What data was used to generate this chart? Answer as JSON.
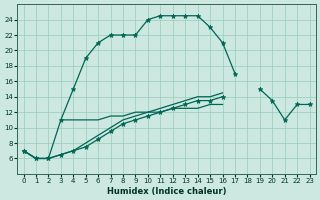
{
  "xlabel": "Humidex (Indice chaleur)",
  "bg_color": "#cce8e0",
  "grid_color": "#99ccbb",
  "line_color": "#006655",
  "x_values": [
    0,
    1,
    2,
    3,
    4,
    5,
    6,
    7,
    8,
    9,
    10,
    11,
    12,
    13,
    14,
    15,
    16,
    17,
    18,
    19,
    20,
    21,
    22,
    23
  ],
  "series1": [
    7,
    6,
    6,
    11,
    15,
    19,
    21,
    22,
    22,
    22,
    24,
    24.5,
    24.5,
    24.5,
    24.5,
    23,
    21,
    17,
    null,
    null,
    null,
    null,
    null,
    null
  ],
  "series2": [
    null,
    null,
    null,
    11,
    11,
    11,
    11,
    11.5,
    11.5,
    12,
    12,
    12,
    12.5,
    12.5,
    12.5,
    13,
    13,
    null,
    null,
    null,
    null,
    null,
    null,
    null
  ],
  "series3": [
    7,
    6,
    6,
    6.5,
    7,
    7.5,
    8.5,
    9.5,
    10.5,
    11,
    11.5,
    12,
    12.5,
    13,
    13.5,
    13.5,
    14,
    null,
    null,
    15,
    13.5,
    11,
    13,
    13
  ],
  "series4": [
    7,
    6,
    6,
    6.5,
    7,
    8,
    9,
    10,
    11,
    11.5,
    12,
    12.5,
    13,
    13.5,
    14,
    14,
    14.5,
    null,
    null,
    null,
    null,
    null,
    null,
    null
  ],
  "ylim": [
    4,
    26
  ],
  "xlim": [
    -0.5,
    23.5
  ],
  "yticks": [
    6,
    8,
    10,
    12,
    14,
    16,
    18,
    20,
    22,
    24
  ],
  "xticks": [
    0,
    1,
    2,
    3,
    4,
    5,
    6,
    7,
    8,
    9,
    10,
    11,
    12,
    13,
    14,
    15,
    16,
    17,
    18,
    19,
    20,
    21,
    22,
    23
  ],
  "tick_fontsize": 5,
  "xlabel_fontsize": 6
}
